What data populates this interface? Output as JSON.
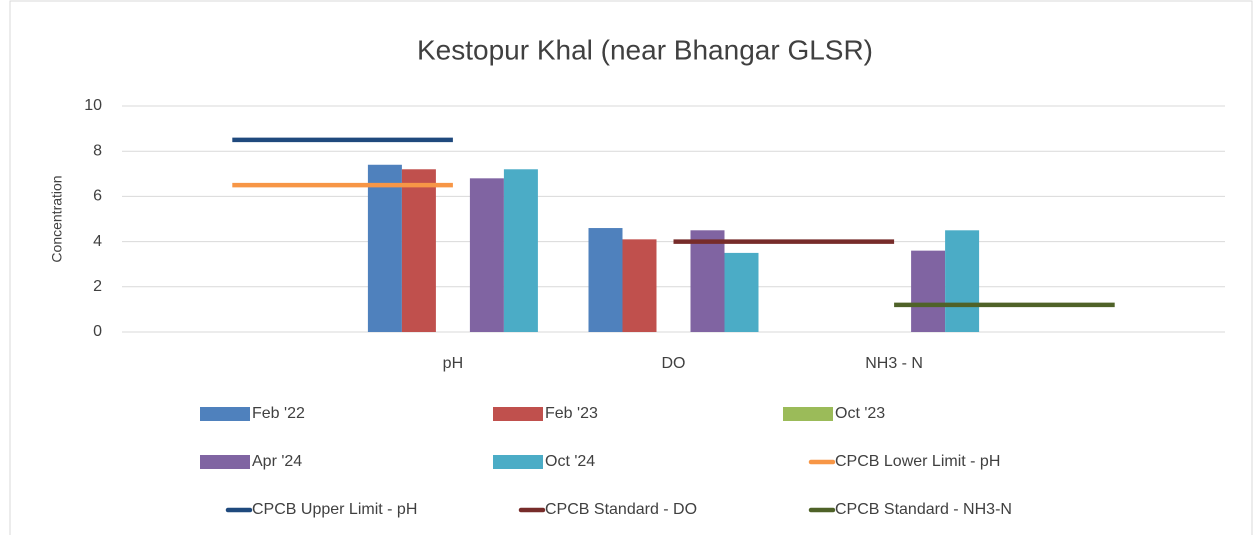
{
  "chart_data": {
    "type": "bar",
    "title": "Kestopur Khal (near Bhangar GLSR)",
    "y_label": "Concentration",
    "categories": [
      null,
      "pH",
      "DO",
      "NH3 - N",
      null
    ],
    "ylim": [
      0,
      10
    ],
    "yticks": [
      0,
      2,
      4,
      6,
      8,
      10
    ],
    "grid": true,
    "legend": "bottom",
    "series": [
      {
        "name": "Feb '22",
        "type": "bar",
        "color": "#4f81bd",
        "values": [
          null,
          7.4,
          4.6,
          null,
          null
        ]
      },
      {
        "name": "Feb '23",
        "type": "bar",
        "color": "#c0504d",
        "values": [
          null,
          7.2,
          4.1,
          null,
          null
        ]
      },
      {
        "name": "Oct '23",
        "type": "bar",
        "color": "#9bbb59",
        "values": [
          null,
          null,
          null,
          null,
          null
        ]
      },
      {
        "name": "Apr '24",
        "type": "bar",
        "color": "#8064a2",
        "values": [
          null,
          6.8,
          4.5,
          3.6,
          null
        ]
      },
      {
        "name": "Oct '24",
        "type": "bar",
        "color": "#4bacc6",
        "values": [
          null,
          7.2,
          3.5,
          4.5,
          null
        ]
      },
      {
        "name": "CPCB Lower Limit - pH",
        "type": "line",
        "color": "#f79646",
        "values": [
          6.5,
          6.5,
          null,
          null,
          null
        ]
      },
      {
        "name": "CPCB Upper Limit - pH",
        "type": "line",
        "color": "#1f497d",
        "values": [
          8.5,
          8.5,
          null,
          null,
          null
        ]
      },
      {
        "name": "CPCB Standard - DO",
        "type": "line",
        "color": "#772c2a",
        "values": [
          null,
          null,
          4,
          4,
          null
        ]
      },
      {
        "name": "CPCB Standard - NH3-N",
        "type": "line",
        "color": "#4f6228",
        "values": [
          null,
          null,
          null,
          1.2,
          1.2
        ]
      }
    ]
  }
}
